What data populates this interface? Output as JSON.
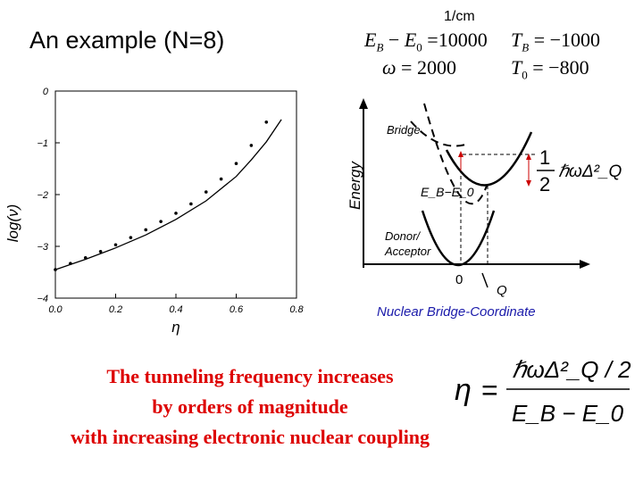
{
  "slide": {
    "title": "An example (N=8)",
    "unit": "1/cm",
    "params": {
      "eb_e0_lhs": "E_B − E_0",
      "eb_e0_val": "10000",
      "tb_lhs": "T_B",
      "tb_val": "−1000",
      "hw_lhs": "ℏω",
      "hw_val": "2000",
      "t0_lhs": "T_0",
      "t0_val": "−800"
    },
    "caption": [
      "The tunneling frequency increases",
      "by orders of magnitude",
      "with increasing electronic nuclear coupling"
    ],
    "eta_formula": {
      "lhs": "η",
      "numerator": "ℏωΔ²_Q / 2",
      "denominator": "E_B − E_0"
    }
  },
  "plot": {
    "type": "scatter",
    "ylabel": "log(ν)",
    "xlabel": "η",
    "xlim": [
      0.0,
      0.8
    ],
    "ylim": [
      -4,
      0
    ],
    "x_ticks": [
      "0.0",
      "0.2",
      "0.4",
      "0.6",
      "0.8"
    ],
    "y_ticks": [
      "0",
      "−1",
      "−2",
      "−3",
      "−4"
    ],
    "points": [
      {
        "x": 0.0,
        "y": -3.45
      },
      {
        "x": 0.05,
        "y": -3.33
      },
      {
        "x": 0.1,
        "y": -3.22
      },
      {
        "x": 0.15,
        "y": -3.1
      },
      {
        "x": 0.2,
        "y": -2.97
      },
      {
        "x": 0.25,
        "y": -2.83
      },
      {
        "x": 0.3,
        "y": -2.68
      },
      {
        "x": 0.35,
        "y": -2.52
      },
      {
        "x": 0.4,
        "y": -2.36
      },
      {
        "x": 0.45,
        "y": -2.18
      },
      {
        "x": 0.5,
        "y": -1.95
      },
      {
        "x": 0.55,
        "y": -1.7
      },
      {
        "x": 0.6,
        "y": -1.4
      },
      {
        "x": 0.65,
        "y": -1.05
      },
      {
        "x": 0.7,
        "y": -0.6
      }
    ],
    "curve": [
      {
        "x": 0.0,
        "y": -3.45
      },
      {
        "x": 0.1,
        "y": -3.25
      },
      {
        "x": 0.2,
        "y": -3.03
      },
      {
        "x": 0.3,
        "y": -2.78
      },
      {
        "x": 0.4,
        "y": -2.48
      },
      {
        "x": 0.5,
        "y": -2.12
      },
      {
        "x": 0.6,
        "y": -1.65
      },
      {
        "x": 0.65,
        "y": -1.33
      },
      {
        "x": 0.7,
        "y": -0.98
      },
      {
        "x": 0.75,
        "y": -0.55
      }
    ]
  },
  "diagram": {
    "energy_label": "Energy",
    "bridge_label": "Bridge",
    "ebe0_label": "E_B−E_0",
    "donor_label": "Donor/",
    "acceptor_label": "Acceptor",
    "origin_label": "0",
    "q_label": "Q",
    "half_num": "1",
    "half_den": "2",
    "hw_term": "ℏωΔ²_Q",
    "axis_label": "Nuclear Bridge-Coordinate",
    "axis_color": "#1a1aaa",
    "arrow_color": "#cc0000"
  }
}
